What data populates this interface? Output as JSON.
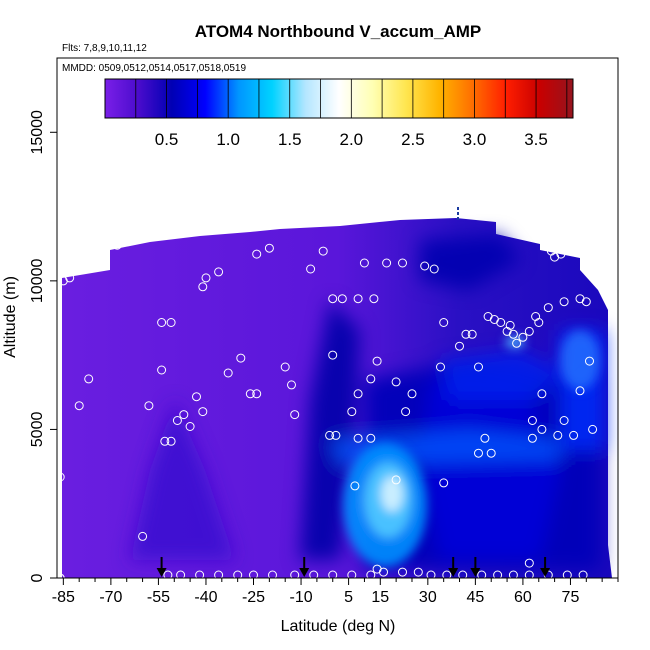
{
  "chart_data": {
    "type": "heatmap",
    "title": "ATOM4 Northbound V_accum_AMP",
    "flights_label": "Flts: 7,8,9,10,11,12",
    "dates_label": "MMDD: 0509,0512,0514,0517,0518,0519",
    "xlabel": "Latitude (deg N)",
    "ylabel": "Altitude (m)",
    "xlim": [
      -87,
      90
    ],
    "ylim": [
      0,
      17500
    ],
    "xticks": [
      -85,
      -70,
      -55,
      -40,
      -25,
      -10,
      5,
      15,
      30,
      45,
      60,
      75
    ],
    "xtick_labels": [
      "-85",
      "-70",
      "-55",
      "-40",
      "-25",
      "-10",
      "5",
      "15",
      "30",
      "45",
      "60",
      "75"
    ],
    "yticks": [
      0,
      5000,
      10000,
      15000
    ],
    "ytick_labels": [
      "0",
      "5000",
      "10000",
      "15000"
    ],
    "colorbar": {
      "range": [
        0,
        3.8
      ],
      "ticks": [
        0.5,
        1.0,
        1.5,
        2.0,
        2.5,
        3.0,
        3.5
      ],
      "tick_labels": [
        "0.5",
        "1.0",
        "1.5",
        "2.0",
        "2.5",
        "3.0",
        "3.5"
      ],
      "colors": [
        "#7a1fe8",
        "#4a0ccc",
        "#0000b4",
        "#0000ff",
        "#0096ff",
        "#00d2ff",
        "#b4e6ff",
        "#ffffff",
        "#ffffb4",
        "#ffe650",
        "#ffb400",
        "#ff6e00",
        "#ff1e00",
        "#c80000",
        "#96141e"
      ]
    },
    "profile_latitudes": [
      -54,
      -9,
      38,
      45,
      67
    ],
    "grid": "off"
  }
}
